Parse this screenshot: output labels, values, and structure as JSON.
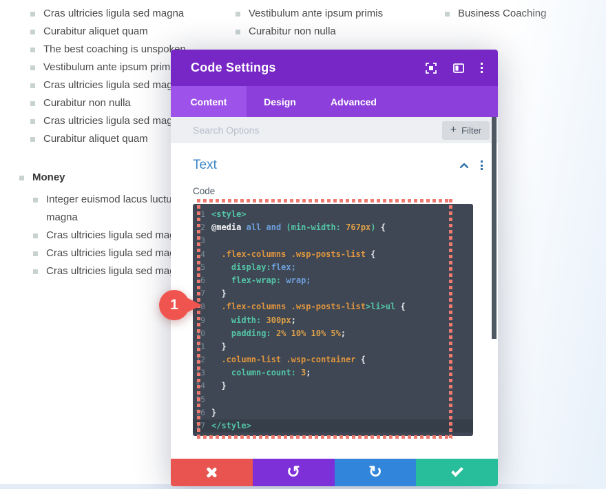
{
  "page": {
    "lists": {
      "left": [
        "Cras ultricies ligula sed magna",
        "Curabitur aliquet quam",
        "The best coaching is unspoken",
        "Vestibulum ante ipsum primis",
        "Cras ultricies ligula sed magna",
        "Curabitur non nulla",
        "Cras ultricies ligula sed magna",
        "Curabitur aliquet quam"
      ],
      "middle": [
        "Vestibulum ante ipsum primis",
        "Curabitur non nulla"
      ],
      "right": [
        "Business Coaching"
      ],
      "money": {
        "heading": "Money",
        "items": [
          "Integer euismod lacus luctus magna",
          "Cras ultricies ligula sed magna",
          "Cras ultricies ligula sed magna",
          "Cras ultricies ligula sed magna"
        ]
      }
    }
  },
  "modal": {
    "title": "Code Settings",
    "header_icons": [
      "expand-icon",
      "split-view-icon",
      "kebab-menu-icon"
    ],
    "tabs": [
      {
        "label": "Content",
        "active": true
      },
      {
        "label": "Design",
        "active": false
      },
      {
        "label": "Advanced",
        "active": false
      }
    ],
    "search": {
      "placeholder": "Search Options",
      "filter_plus": "+",
      "filter_label": "Filter"
    },
    "section": {
      "title": "Text",
      "field_label": "Code"
    },
    "badge": {
      "value": "1"
    },
    "footer_icons": {
      "undo_glyph": "↺",
      "redo_glyph": "↻"
    },
    "code_editor": {
      "language": "css",
      "lines": [
        {
          "n": "1",
          "tokens": [
            [
              "tag",
              "<style>"
            ]
          ]
        },
        {
          "n": "2",
          "tokens": [
            [
              "bold",
              "@media"
            ],
            [
              "plain",
              " "
            ],
            [
              "kw",
              "all"
            ],
            [
              "plain",
              " "
            ],
            [
              "kw",
              "and"
            ],
            [
              "plain",
              " "
            ],
            [
              "tag",
              "(min-width:"
            ],
            [
              "plain",
              " "
            ],
            [
              "num",
              "767px"
            ],
            [
              "tag",
              ")"
            ],
            [
              "plain",
              " {"
            ]
          ]
        },
        {
          "n": "3",
          "tokens": []
        },
        {
          "n": "4",
          "tokens": [
            [
              "plain",
              "  "
            ],
            [
              "sel",
              ".flex-columns .wsp-posts-list"
            ],
            [
              "plain",
              " {"
            ]
          ]
        },
        {
          "n": "5",
          "tokens": [
            [
              "plain",
              "    "
            ],
            [
              "tag",
              "display:"
            ],
            [
              "kw",
              "flex;"
            ]
          ]
        },
        {
          "n": "6",
          "tokens": [
            [
              "plain",
              "    "
            ],
            [
              "tag",
              "flex-wrap:"
            ],
            [
              "plain",
              " "
            ],
            [
              "kw",
              "wrap;"
            ]
          ]
        },
        {
          "n": "7",
          "tokens": [
            [
              "plain",
              "  }"
            ]
          ]
        },
        {
          "n": "8",
          "tokens": [
            [
              "plain",
              "  "
            ],
            [
              "sel",
              ".flex-columns .wsp-posts-list"
            ],
            [
              "tag",
              ">li>ul"
            ],
            [
              "plain",
              " {"
            ]
          ]
        },
        {
          "n": "9",
          "tokens": [
            [
              "plain",
              "    "
            ],
            [
              "tag",
              "width:"
            ],
            [
              "plain",
              " "
            ],
            [
              "num",
              "300px"
            ],
            [
              "plain",
              ";"
            ]
          ]
        },
        {
          "n": "10",
          "tokens": [
            [
              "plain",
              "    "
            ],
            [
              "tag",
              "padding:"
            ],
            [
              "plain",
              " "
            ],
            [
              "num",
              "2% 10% 10% 5%"
            ],
            [
              "plain",
              ";"
            ]
          ]
        },
        {
          "n": "11",
          "tokens": [
            [
              "plain",
              "  }"
            ]
          ]
        },
        {
          "n": "12",
          "tokens": [
            [
              "plain",
              "  "
            ],
            [
              "sel",
              ".column-list .wsp-container"
            ],
            [
              "plain",
              " {"
            ]
          ]
        },
        {
          "n": "13",
          "tokens": [
            [
              "plain",
              "    "
            ],
            [
              "tag",
              "column-count:"
            ],
            [
              "plain",
              " "
            ],
            [
              "num",
              "3"
            ],
            [
              "plain",
              ";"
            ]
          ]
        },
        {
          "n": "14",
          "tokens": [
            [
              "plain",
              "  }"
            ]
          ]
        },
        {
          "n": "15",
          "tokens": []
        },
        {
          "n": "16",
          "tokens": [
            [
              "plain",
              "}"
            ]
          ]
        },
        {
          "n": "17",
          "active": true,
          "tokens": [
            [
              "tag",
              "</style>"
            ]
          ]
        }
      ]
    }
  },
  "colors": {
    "header_purple": "#7727c5",
    "tab_bar_purple": "#8d3fdb",
    "tab_active_purple": "#9d53e9",
    "section_blue": "#3a85c7",
    "code_bg": "#3e4753",
    "selection_red": "#ef7b70",
    "badge_red": "#f0544f",
    "btn_discard_red": "#ea5450",
    "btn_undo_purple": "#7e30d8",
    "btn_redo_blue": "#3186db",
    "btn_save_green": "#28bd9b"
  }
}
